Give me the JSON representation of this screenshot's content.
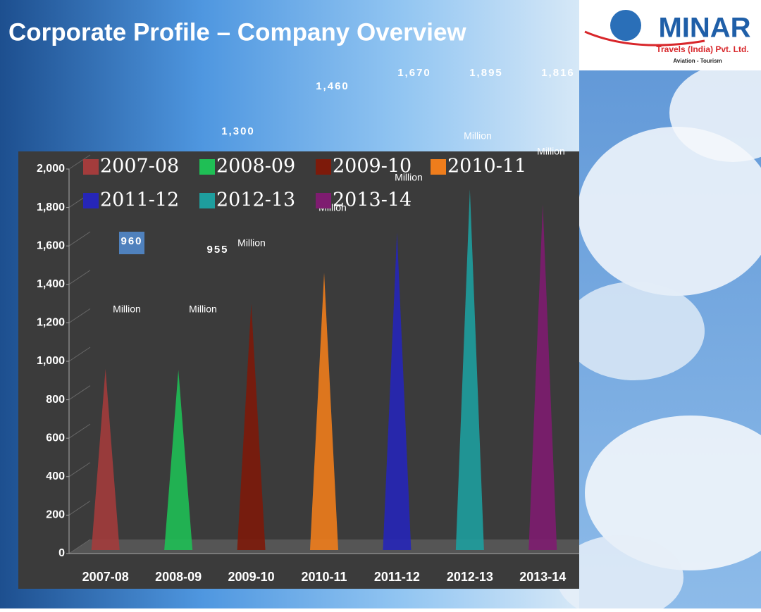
{
  "header": {
    "title": "Corporate Profile – Company Overview",
    "logo": {
      "brand": "MINAR",
      "company": "Travels (India) Pvt. Ltd.",
      "tagline": "Aviation - Tourism"
    }
  },
  "chart_data": {
    "type": "bar",
    "categories": [
      "2007-08",
      "2008-09",
      "2009-10",
      "2010-11",
      "2011-12",
      "2012-13",
      "2013-14"
    ],
    "values": [
      960,
      955,
      1300,
      1460,
      1670,
      1895,
      1816
    ],
    "value_labels": [
      "960",
      "955",
      "1,300",
      "1,460",
      "1,670",
      "1,895",
      "1,816"
    ],
    "unit_label": "Million",
    "colors": [
      "#a33c3c",
      "#1fbf55",
      "#7d1a0a",
      "#ef7d1c",
      "#2626b8",
      "#1e9e9e",
      "#7e1c70"
    ],
    "ylim": [
      0,
      2000
    ],
    "yticks": [
      0,
      200,
      400,
      600,
      800,
      {
        "value": 1000,
        "label": "1,000"
      },
      {
        "value": 1200,
        "label": "1,200"
      },
      {
        "value": 1400,
        "label": "1,400"
      },
      {
        "value": 1600,
        "label": "1,600"
      },
      {
        "value": 1800,
        "label": "1,800"
      },
      {
        "value": 2000,
        "label": "2,000"
      }
    ],
    "grid": true,
    "legend": "top"
  }
}
